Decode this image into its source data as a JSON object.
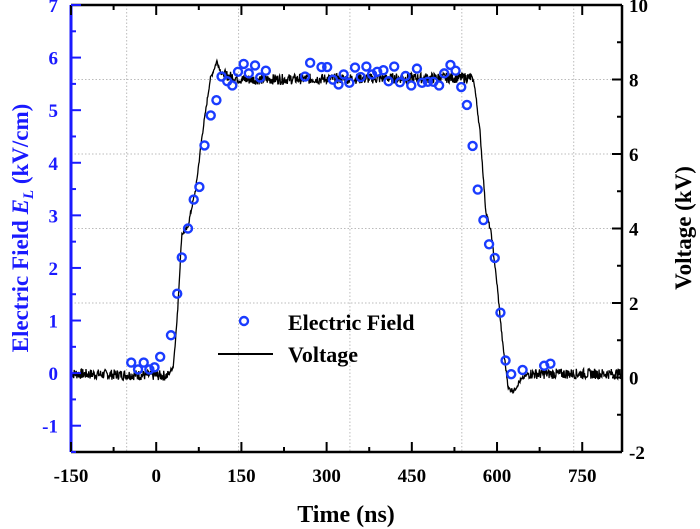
{
  "chart_data": {
    "type": "scatter+line",
    "xlabel": "Time (ns)",
    "ylabel_left": "Electric Field  E_L (kV/cm)",
    "ylabel_left_parts": {
      "prefix": "Electric Field ",
      "symbol": "E",
      "subscript": "L",
      "unit": " (kV/cm)"
    },
    "ylabel_right": "Voltage (kV)",
    "xlim": [
      -150,
      820
    ],
    "ylim_left": [
      -1.5,
      7
    ],
    "ylim_right": [
      -2,
      10
    ],
    "xticks": [
      "-150",
      "0",
      "150",
      "300",
      "450",
      "600",
      "750"
    ],
    "yticks_left": [
      "-1",
      "0",
      "1",
      "2",
      "3",
      "4",
      "5",
      "6",
      "7"
    ],
    "yticks_right": [
      "-2",
      "0",
      "2",
      "4",
      "6",
      "8",
      "10"
    ],
    "grid": true,
    "legend_position": "center-bottom",
    "colors": {
      "left_axis": "#1a1aff",
      "electric_field": "#1a3cff",
      "voltage": "#000000"
    },
    "series": [
      {
        "name": "Electric Field",
        "type": "scatter",
        "axis": "left",
        "marker": "open-circle",
        "x": [
          -44,
          -32,
          -22,
          -12,
          -3,
          7,
          26,
          37,
          45,
          56,
          66,
          76,
          85,
          96,
          106,
          115,
          125,
          134,
          144,
          154,
          163,
          174,
          183,
          193,
          262,
          271,
          291,
          301,
          311,
          321,
          330,
          340,
          350,
          360,
          370,
          380,
          389,
          400,
          409,
          419,
          429,
          439,
          449,
          459,
          468,
          478,
          488,
          498,
          507,
          518,
          527,
          537,
          547,
          557,
          566,
          576,
          586,
          596,
          606,
          615,
          625,
          645,
          683,
          694
        ],
        "y": [
          0.2,
          0.07,
          0.2,
          0.07,
          0.11,
          0.31,
          0.72,
          1.51,
          2.2,
          2.75,
          3.3,
          3.54,
          4.33,
          4.9,
          5.19,
          5.64,
          5.55,
          5.47,
          5.73,
          5.88,
          5.7,
          5.85,
          5.62,
          5.75,
          5.64,
          5.9,
          5.82,
          5.82,
          5.58,
          5.49,
          5.68,
          5.52,
          5.81,
          5.63,
          5.83,
          5.68,
          5.73,
          5.76,
          5.55,
          5.83,
          5.53,
          5.65,
          5.47,
          5.79,
          5.52,
          5.54,
          5.54,
          5.47,
          5.7,
          5.86,
          5.75,
          5.44,
          5.1,
          4.32,
          3.49,
          2.91,
          2.45,
          2.19,
          1.15,
          0.24,
          -0.02,
          0.06,
          0.14,
          0.18
        ]
      },
      {
        "name": "Voltage",
        "type": "line",
        "axis": "right",
        "x": [
          -150,
          20,
          30,
          37,
          45,
          55,
          70,
          80,
          95,
          107,
          115,
          150,
          555,
          560,
          570,
          580,
          590,
          600,
          610,
          620,
          630,
          640,
          655,
          820
        ],
        "y": [
          0.1,
          0.05,
          0.3,
          1.6,
          3.85,
          4.0,
          5.1,
          6.4,
          8.0,
          8.5,
          8.15,
          8.0,
          8.05,
          7.9,
          6.6,
          4.5,
          3.85,
          2.5,
          0.9,
          -0.3,
          -0.35,
          -0.1,
          0.1,
          0.1
        ]
      }
    ]
  }
}
